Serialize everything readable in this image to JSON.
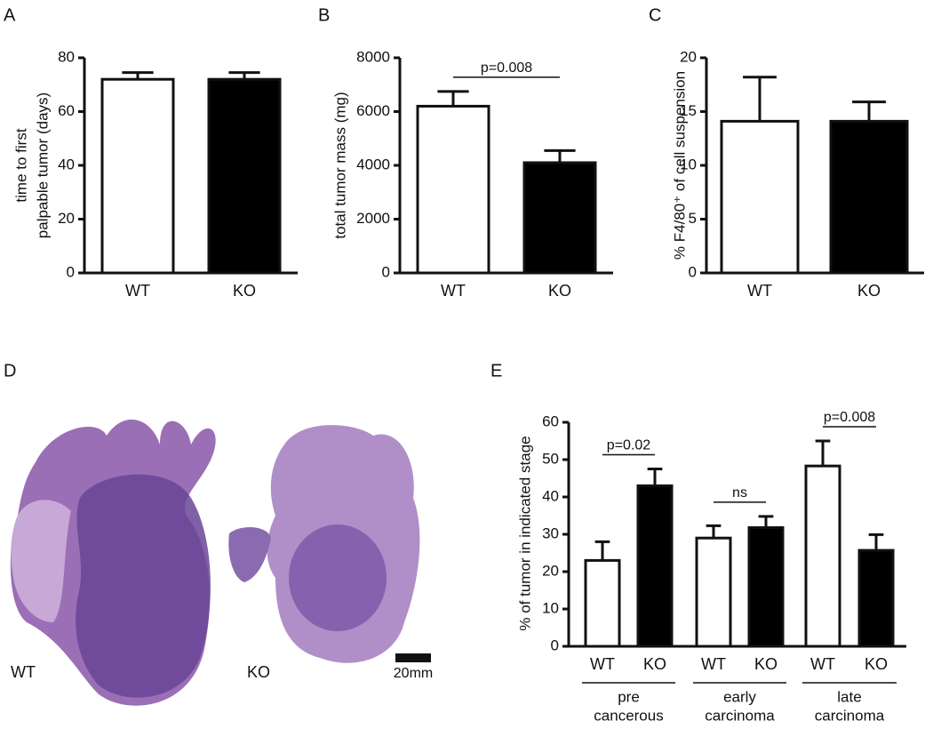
{
  "chart_data": [
    {
      "type": "bar",
      "panel_label": "A",
      "ylabel": [
        "time to first",
        "palpable tumor (days)"
      ],
      "categories": [
        "WT",
        "KO"
      ],
      "values": [
        72,
        72
      ],
      "errors": [
        2.5,
        2.5
      ],
      "colors": [
        "#ffffff",
        "#000000"
      ],
      "ylim": [
        0,
        80
      ],
      "yticks": [
        0,
        20,
        40,
        60,
        80
      ]
    },
    {
      "type": "bar",
      "panel_label": "B",
      "ylabel": [
        "total tumor mass (mg)"
      ],
      "categories": [
        "WT",
        "KO"
      ],
      "values": [
        6200,
        4100
      ],
      "errors": [
        550,
        450
      ],
      "colors": [
        "#ffffff",
        "#000000"
      ],
      "ylim": [
        0,
        8000
      ],
      "yticks": [
        0,
        2000,
        4000,
        6000,
        8000
      ],
      "annotations": [
        {
          "text": "p=0.008",
          "from": 0,
          "to": 1
        }
      ]
    },
    {
      "type": "bar",
      "panel_label": "C",
      "ylabel": [
        "% F4/80⁺ of cell suspension"
      ],
      "categories": [
        "WT",
        "KO"
      ],
      "values": [
        14.1,
        14.1
      ],
      "errors": [
        4.1,
        1.8
      ],
      "colors": [
        "#ffffff",
        "#000000"
      ],
      "ylim": [
        0,
        20
      ],
      "yticks": [
        0,
        5,
        10,
        15,
        20
      ]
    },
    {
      "type": "bar",
      "panel_label": "E",
      "ylabel": [
        "% of tumor in indicated stage"
      ],
      "categories": [
        "WT",
        "KO",
        "WT",
        "KO",
        "WT",
        "KO"
      ],
      "values": [
        23,
        43,
        29,
        31.8,
        48.3,
        25.7
      ],
      "errors": [
        5,
        4.5,
        3.3,
        3,
        6.7,
        4.2
      ],
      "colors": [
        "#ffffff",
        "#000000",
        "#ffffff",
        "#000000",
        "#ffffff",
        "#000000"
      ],
      "ylim": [
        0,
        60
      ],
      "yticks": [
        0,
        10,
        20,
        30,
        40,
        50,
        60
      ],
      "groups": [
        {
          "label": [
            "pre",
            "cancerous"
          ],
          "from": 0,
          "to": 1
        },
        {
          "label": [
            "early",
            "carcinoma"
          ],
          "from": 2,
          "to": 3
        },
        {
          "label": [
            "late",
            "carcinoma"
          ],
          "from": 4,
          "to": 5
        }
      ],
      "annotations": [
        {
          "text": "p=0.02",
          "from": 0,
          "to": 1
        },
        {
          "text": "ns",
          "from": 2,
          "to": 3
        },
        {
          "text": "p=0.008",
          "from": 4,
          "to": 5
        }
      ]
    }
  ],
  "image_panel": {
    "panel_label": "D",
    "captions": [
      "WT",
      "KO"
    ],
    "scale_bar": "20mm"
  }
}
